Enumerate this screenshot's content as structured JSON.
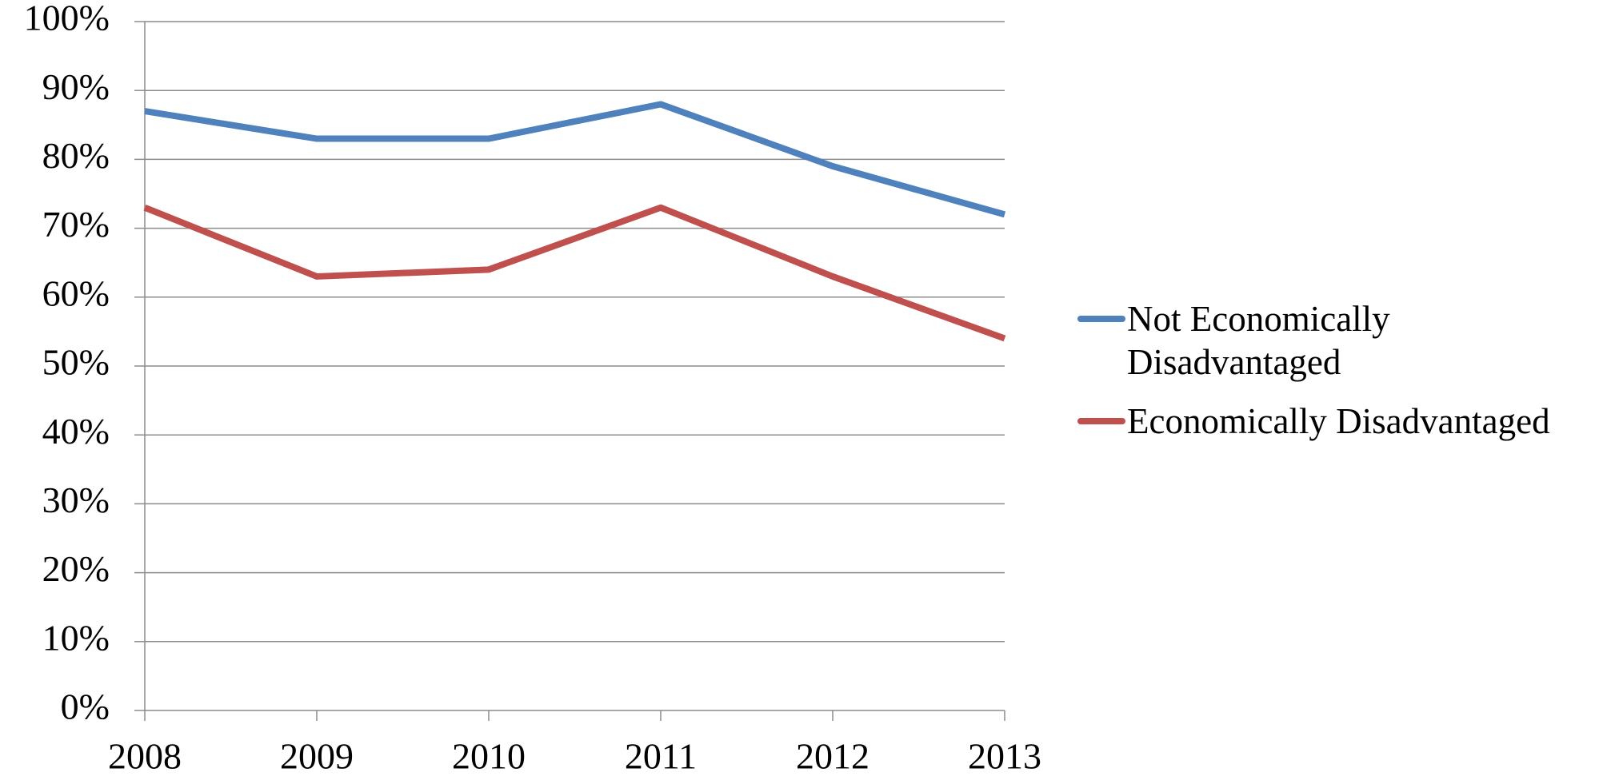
{
  "chart_data": {
    "type": "line",
    "x": [
      2008,
      2009,
      2010,
      2011,
      2012,
      2013
    ],
    "xlim": [
      2008,
      2013
    ],
    "xticks": [
      2008,
      2009,
      2010,
      2011,
      2012,
      2013
    ],
    "ylim": [
      0,
      100
    ],
    "yticks": [
      {
        "value": 0,
        "label": "0%"
      },
      {
        "value": 10,
        "label": "10%"
      },
      {
        "value": 20,
        "label": "20%"
      },
      {
        "value": 30,
        "label": "30%"
      },
      {
        "value": 40,
        "label": "40%"
      },
      {
        "value": 50,
        "label": "50%"
      },
      {
        "value": 60,
        "label": "60%"
      },
      {
        "value": 70,
        "label": "70%"
      },
      {
        "value": 80,
        "label": "80%"
      },
      {
        "value": 90,
        "label": "90%"
      },
      {
        "value": 100,
        "label": "100%"
      }
    ],
    "grid": true,
    "legend": "right",
    "series": [
      {
        "name": "Not Economically Disadvantaged",
        "color": "#4f81bd",
        "values": [
          87,
          83,
          83,
          88,
          79,
          72
        ]
      },
      {
        "name": "Economically Disadvantaged",
        "color": "#c0504d",
        "values": [
          73,
          63,
          64,
          73,
          63,
          54
        ]
      }
    ]
  }
}
